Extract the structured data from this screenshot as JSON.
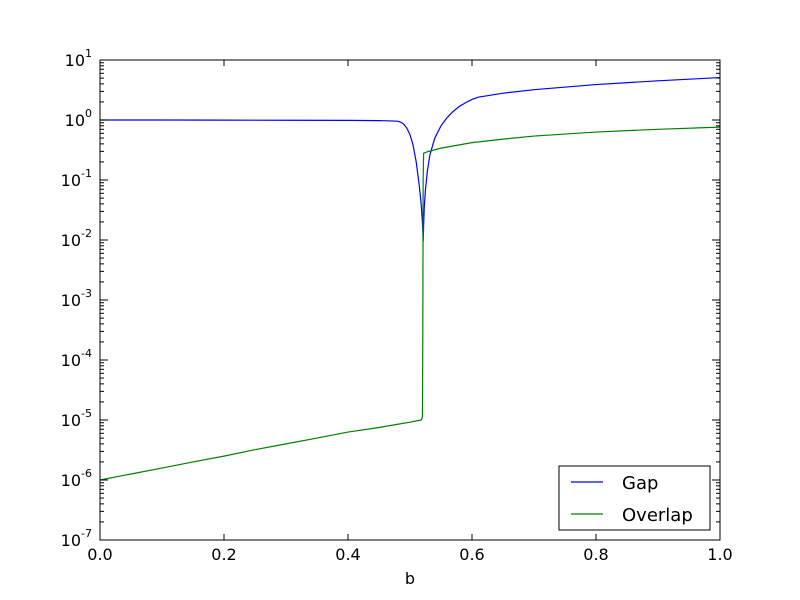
{
  "chart_data": {
    "type": "line",
    "title": "",
    "xlabel": "b",
    "ylabel": "",
    "yscale": "log",
    "xlim": [
      0.0,
      1.0
    ],
    "ylim": [
      1e-07,
      10
    ],
    "grid": false,
    "legend": {
      "placement": "bottom-right",
      "frame": true
    },
    "xticks": [
      {
        "value": 0.0,
        "label": "0.0"
      },
      {
        "value": 0.2,
        "label": "0.2"
      },
      {
        "value": 0.4,
        "label": "0.4"
      },
      {
        "value": 0.6,
        "label": "0.6"
      },
      {
        "value": 0.8,
        "label": "0.8"
      },
      {
        "value": 1.0,
        "label": "1.0"
      }
    ],
    "yticks": [
      {
        "value": 10.0,
        "base": "10",
        "exp": "1"
      },
      {
        "value": 1.0,
        "base": "10",
        "exp": "0"
      },
      {
        "value": 0.1,
        "base": "10",
        "exp": "-1"
      },
      {
        "value": 0.01,
        "base": "10",
        "exp": "-2"
      },
      {
        "value": 0.001,
        "base": "10",
        "exp": "-3"
      },
      {
        "value": 0.0001,
        "base": "10",
        "exp": "-4"
      },
      {
        "value": 1e-05,
        "base": "10",
        "exp": "-5"
      },
      {
        "value": 1e-06,
        "base": "10",
        "exp": "-6"
      },
      {
        "value": 1e-07,
        "base": "10",
        "exp": "-7"
      }
    ],
    "series": [
      {
        "name": "Gap",
        "color": "#0000ff",
        "points": [
          [
            0.0,
            1.0
          ],
          [
            0.1,
            1.0
          ],
          [
            0.2,
            0.995
          ],
          [
            0.3,
            0.99
          ],
          [
            0.4,
            0.985
          ],
          [
            0.45,
            0.975
          ],
          [
            0.47,
            0.965
          ],
          [
            0.48,
            0.955
          ],
          [
            0.485,
            0.92
          ],
          [
            0.49,
            0.85
          ],
          [
            0.495,
            0.73
          ],
          [
            0.5,
            0.57
          ],
          [
            0.505,
            0.38
          ],
          [
            0.51,
            0.2
          ],
          [
            0.515,
            0.08
          ],
          [
            0.518,
            0.04
          ],
          [
            0.52,
            0.02
          ],
          [
            0.521,
            0.012
          ],
          [
            0.5213,
            0.0095
          ],
          [
            0.522,
            0.018
          ],
          [
            0.523,
            0.035
          ],
          [
            0.525,
            0.07
          ],
          [
            0.528,
            0.14
          ],
          [
            0.532,
            0.26
          ],
          [
            0.54,
            0.5
          ],
          [
            0.55,
            0.8
          ],
          [
            0.56,
            1.1
          ],
          [
            0.57,
            1.4
          ],
          [
            0.58,
            1.7
          ],
          [
            0.59,
            1.95
          ],
          [
            0.6,
            2.2
          ],
          [
            0.61,
            2.4
          ],
          [
            0.65,
            2.8
          ],
          [
            0.7,
            3.2
          ],
          [
            0.8,
            3.9
          ],
          [
            0.9,
            4.5
          ],
          [
            1.0,
            5.1
          ]
        ]
      },
      {
        "name": "Overlap",
        "color": "#008000",
        "points": [
          [
            0.0,
            1e-06
          ],
          [
            0.05,
            1.26e-06
          ],
          [
            0.1,
            1.58e-06
          ],
          [
            0.15,
            2e-06
          ],
          [
            0.2,
            2.5e-06
          ],
          [
            0.25,
            3.2e-06
          ],
          [
            0.3,
            4e-06
          ],
          [
            0.35,
            5e-06
          ],
          [
            0.4,
            6.3e-06
          ],
          [
            0.45,
            7.5e-06
          ],
          [
            0.48,
            8.5e-06
          ],
          [
            0.5,
            9.2e-06
          ],
          [
            0.518,
            1e-05
          ],
          [
            0.52,
            1.1e-05
          ],
          [
            0.5205,
            0.0001
          ],
          [
            0.5208,
            0.001
          ],
          [
            0.521,
            0.01
          ],
          [
            0.5212,
            0.1
          ],
          [
            0.522,
            0.28
          ],
          [
            0.53,
            0.3
          ],
          [
            0.55,
            0.34
          ],
          [
            0.6,
            0.42
          ],
          [
            0.65,
            0.48
          ],
          [
            0.7,
            0.54
          ],
          [
            0.8,
            0.63
          ],
          [
            0.9,
            0.7
          ],
          [
            1.0,
            0.76
          ]
        ]
      }
    ]
  }
}
